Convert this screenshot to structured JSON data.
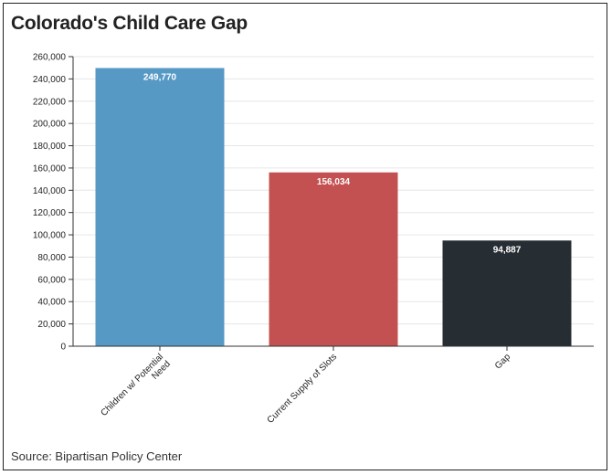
{
  "chart_data": {
    "type": "bar",
    "title": "Colorado's Child Care Gap",
    "categories": [
      "Children w/ Potential Need",
      "Current Supply of Slots",
      "Gap"
    ],
    "category_lines": [
      [
        "Children w/ Potential",
        "Need"
      ],
      [
        "Current Supply of Slots"
      ],
      [
        "Gap"
      ]
    ],
    "values": [
      249770,
      156034,
      94887
    ],
    "data_labels": [
      "249,770",
      "156,034",
      "94,887"
    ],
    "colors": [
      "#5699c5",
      "#c45151",
      "#262d33"
    ],
    "ylim": [
      0,
      260000
    ],
    "yticks": [
      0,
      20000,
      40000,
      60000,
      80000,
      100000,
      120000,
      140000,
      160000,
      180000,
      200000,
      220000,
      240000,
      260000
    ],
    "ytick_labels": [
      "0",
      "20,000",
      "40,000",
      "60,000",
      "80,000",
      "100,000",
      "120,000",
      "140,000",
      "160,000",
      "180,000",
      "200,000",
      "220,000",
      "240,000",
      "260,000"
    ],
    "xlabel": "",
    "ylabel": "",
    "grid": true,
    "source": "Source: Bipartisan Policy Center"
  }
}
